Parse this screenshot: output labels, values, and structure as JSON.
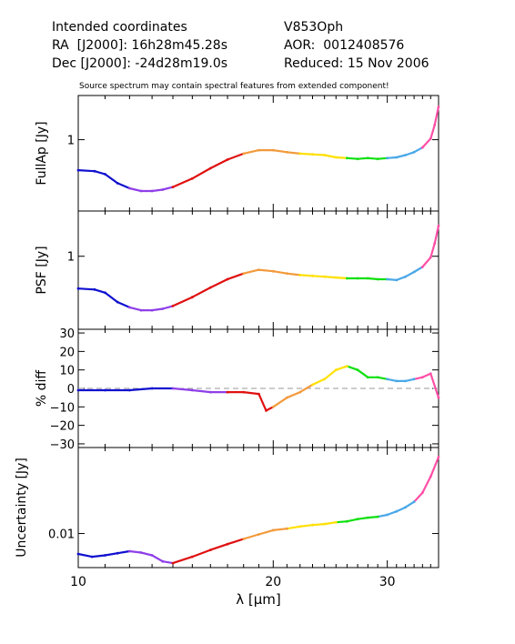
{
  "header": {
    "left": [
      "Intended coordinates",
      "RA  [J2000]: 16h28m45.28s",
      "Dec [J2000]: -24d28m19.0s"
    ],
    "right": [
      "V853Oph",
      "AOR:  0012408576",
      "Reduced: 15 Nov 2006"
    ]
  },
  "note": "Source spectrum may contain spectral features from extended component!",
  "chart_data": [
    {
      "type": "line",
      "panel": "fullap",
      "ylabel": "FullAp [Jy]",
      "yscale": "log",
      "xscale": "log",
      "xlim": [
        10,
        36
      ],
      "ylim": [
        0.28,
        2.2
      ],
      "yticks": [
        1
      ],
      "ytick_labels": [
        "1"
      ],
      "x": [
        10.0,
        10.6,
        11.0,
        11.5,
        12.0,
        12.5,
        13.0,
        13.5,
        14.0,
        15.0,
        16.0,
        17.0,
        18.0,
        19.0,
        20.0,
        21.0,
        22.0,
        23.0,
        24.0,
        25.0,
        26.0,
        27.0,
        28.0,
        29.0,
        30.0,
        31.0,
        32.0,
        33.0,
        34.0,
        35.0,
        35.5,
        36.0
      ],
      "values": [
        0.58,
        0.57,
        0.54,
        0.46,
        0.42,
        0.4,
        0.4,
        0.41,
        0.43,
        0.5,
        0.6,
        0.7,
        0.78,
        0.83,
        0.83,
        0.8,
        0.78,
        0.77,
        0.76,
        0.73,
        0.72,
        0.71,
        0.72,
        0.71,
        0.72,
        0.73,
        0.76,
        0.8,
        0.87,
        1.02,
        1.3,
        1.8
      ]
    },
    {
      "type": "line",
      "panel": "psf",
      "ylabel": "PSF [Jy]",
      "yscale": "log",
      "xscale": "log",
      "xlim": [
        10,
        36
      ],
      "ylim": [
        0.28,
        2.2
      ],
      "yticks": [
        1
      ],
      "ytick_labels": [
        "1"
      ],
      "x": [
        10.0,
        10.6,
        11.0,
        11.5,
        12.0,
        12.5,
        13.0,
        13.5,
        14.0,
        15.0,
        16.0,
        17.0,
        18.0,
        19.0,
        20.0,
        21.0,
        22.0,
        23.0,
        24.0,
        25.0,
        26.0,
        27.0,
        28.0,
        29.0,
        30.0,
        31.0,
        32.0,
        33.0,
        34.0,
        35.0,
        35.5,
        36.0
      ],
      "values": [
        0.57,
        0.56,
        0.53,
        0.45,
        0.41,
        0.39,
        0.39,
        0.4,
        0.42,
        0.49,
        0.58,
        0.67,
        0.74,
        0.79,
        0.77,
        0.74,
        0.72,
        0.71,
        0.7,
        0.69,
        0.68,
        0.68,
        0.68,
        0.67,
        0.67,
        0.66,
        0.7,
        0.76,
        0.83,
        0.98,
        1.25,
        1.7
      ]
    },
    {
      "type": "line",
      "panel": "diff",
      "ylabel": "% diff",
      "yscale": "linear",
      "xscale": "log",
      "xlim": [
        10,
        36
      ],
      "ylim": [
        -32,
        32
      ],
      "yticks": [
        -30,
        -20,
        -10,
        0,
        10,
        20,
        30
      ],
      "ytick_labels": [
        "−30",
        "−20",
        "−10",
        "0",
        "10",
        "20",
        "30"
      ],
      "zero_line": true,
      "x": [
        10.0,
        11.0,
        12.0,
        13.0,
        14.0,
        15.0,
        16.0,
        17.0,
        18.0,
        19.0,
        19.5,
        20.0,
        21.0,
        22.0,
        23.0,
        24.0,
        25.0,
        26.0,
        27.0,
        28.0,
        29.0,
        30.0,
        31.0,
        32.0,
        33.0,
        34.0,
        35.0,
        36.0
      ],
      "values": [
        -1,
        -1,
        -1,
        0,
        0,
        -1,
        -2,
        -2,
        -2,
        -3,
        -12,
        -10,
        -5,
        -2,
        2,
        5,
        10,
        12,
        10,
        6,
        6,
        5,
        4,
        4,
        5,
        6,
        8,
        -5
      ]
    },
    {
      "type": "line",
      "panel": "uncertainty",
      "ylabel": "Uncertainty [Jy]",
      "xlabel": "λ [μm]",
      "yscale": "log",
      "xscale": "log",
      "xlim": [
        10,
        36
      ],
      "ylim": [
        0.0045,
        0.075
      ],
      "yticks": [
        0.01
      ],
      "ytick_labels": [
        "0.01"
      ],
      "xticks": [
        10,
        20,
        30
      ],
      "xtick_labels": [
        "10",
        "20",
        "30"
      ],
      "x": [
        10.0,
        10.5,
        11.0,
        11.5,
        12.0,
        12.5,
        13.0,
        13.5,
        14.0,
        15.0,
        16.0,
        17.0,
        18.0,
        19.0,
        20.0,
        21.0,
        22.0,
        23.0,
        24.0,
        25.0,
        26.0,
        27.0,
        28.0,
        29.0,
        30.0,
        31.0,
        32.0,
        33.0,
        34.0,
        35.0,
        36.0
      ],
      "values": [
        0.0062,
        0.0058,
        0.006,
        0.0063,
        0.0066,
        0.0064,
        0.006,
        0.0052,
        0.005,
        0.0058,
        0.0068,
        0.0078,
        0.0088,
        0.0098,
        0.0108,
        0.0112,
        0.0118,
        0.0122,
        0.0125,
        0.013,
        0.0133,
        0.014,
        0.0145,
        0.0148,
        0.0155,
        0.0168,
        0.0185,
        0.021,
        0.026,
        0.038,
        0.06
      ]
    }
  ],
  "segment_colors": [
    "#1010d0",
    "#8f3fe8",
    "#e01010",
    "#f29a3c",
    "#ffe000",
    "#10e010",
    "#4aa8e8",
    "#ff4fa6"
  ]
}
